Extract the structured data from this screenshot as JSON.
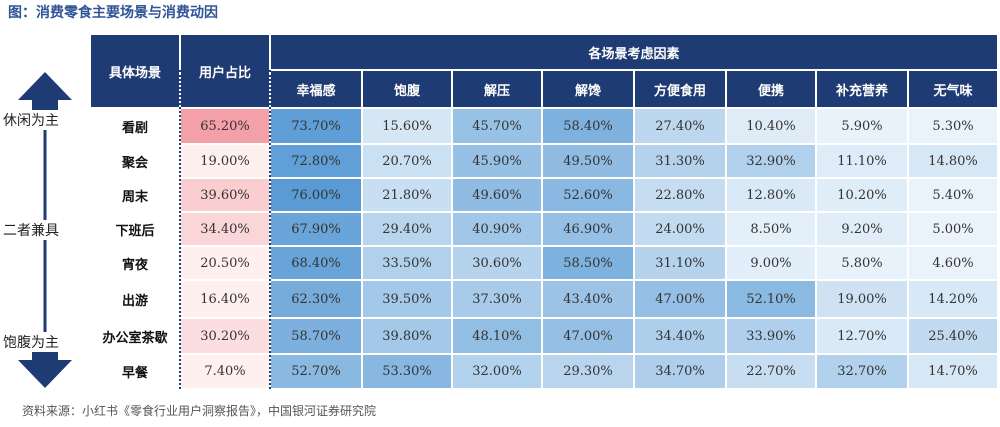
{
  "title": "图：消费零食主要场景与消费动因",
  "source": "资料来源：小红书《零食行业用户洞察报告》，中国银河证券研究院",
  "side_labels": {
    "top": "休闲为主",
    "middle": "二者兼具",
    "bottom": "饱腹为主"
  },
  "colors": {
    "header": "#1f3b73",
    "reason_scale": [
      "#eaf3fb",
      "#5a9bd5"
    ],
    "share_scale": [
      "#fff0f0",
      "#f4a0a8"
    ]
  },
  "chart_data": {
    "type": "table",
    "scene_header": "具体场景",
    "share_header": "用户占比",
    "reason_group_header": "各场景考虑因素",
    "reasons": [
      "幸福感",
      "饱腹",
      "解压",
      "解馋",
      "方便食用",
      "便携",
      "补充营养",
      "无气味"
    ],
    "rows": [
      {
        "scene": "看剧",
        "share": "65.20%",
        "values": [
          "73.70%",
          "15.60%",
          "45.70%",
          "58.40%",
          "27.40%",
          "10.40%",
          "5.90%",
          "5.30%"
        ]
      },
      {
        "scene": "聚会",
        "share": "19.00%",
        "values": [
          "72.80%",
          "20.70%",
          "45.90%",
          "49.50%",
          "31.30%",
          "32.90%",
          "11.10%",
          "14.80%"
        ]
      },
      {
        "scene": "周末",
        "share": "39.60%",
        "values": [
          "76.00%",
          "21.80%",
          "49.60%",
          "52.60%",
          "22.80%",
          "12.80%",
          "10.20%",
          "5.40%"
        ]
      },
      {
        "scene": "下班后",
        "share": "34.40%",
        "values": [
          "67.90%",
          "29.40%",
          "40.90%",
          "46.90%",
          "24.00%",
          "8.50%",
          "9.20%",
          "5.00%"
        ]
      },
      {
        "scene": "宵夜",
        "share": "20.50%",
        "values": [
          "68.40%",
          "33.50%",
          "30.60%",
          "58.50%",
          "31.10%",
          "9.00%",
          "5.80%",
          "4.60%"
        ]
      },
      {
        "scene": "出游",
        "share": "16.40%",
        "values": [
          "62.30%",
          "39.50%",
          "37.30%",
          "43.40%",
          "47.00%",
          "52.10%",
          "19.00%",
          "14.20%"
        ]
      },
      {
        "scene": "办公室茶歇",
        "share": "30.20%",
        "values": [
          "58.70%",
          "39.80%",
          "48.10%",
          "47.00%",
          "34.40%",
          "33.90%",
          "12.70%",
          "25.40%"
        ]
      },
      {
        "scene": "早餐",
        "share": "7.40%",
        "values": [
          "52.70%",
          "53.30%",
          "32.00%",
          "29.30%",
          "34.70%",
          "22.70%",
          "32.70%",
          "14.70%"
        ]
      }
    ]
  }
}
